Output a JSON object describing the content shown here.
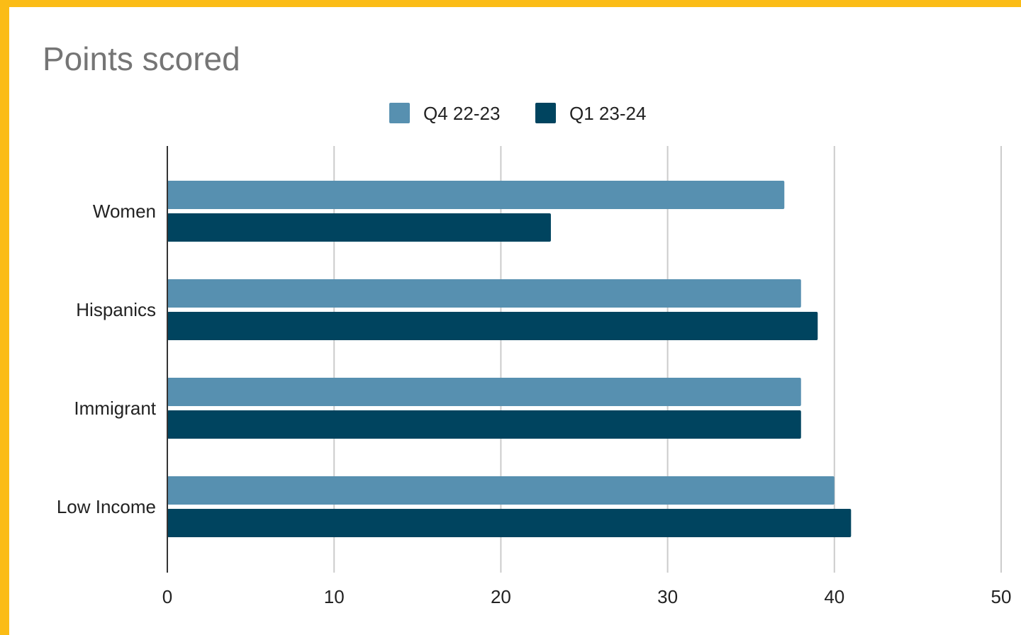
{
  "chart_data": {
    "type": "bar",
    "orientation": "horizontal",
    "title": "Points scored",
    "categories": [
      "Women",
      "Hispanics",
      "Immigrant",
      "Low Income"
    ],
    "series": [
      {
        "name": "Q4 22-23",
        "color": "#5790b0",
        "values": [
          37,
          38,
          38,
          40
        ]
      },
      {
        "name": "Q1 23-24",
        "color": "#00445f",
        "values": [
          23,
          39,
          38,
          41
        ]
      }
    ],
    "xlim": [
      0,
      50
    ],
    "xticks": [
      "0",
      "10",
      "20",
      "30",
      "40",
      "50"
    ],
    "grid": true,
    "legend_position": "top",
    "xlabel": "",
    "ylabel": ""
  },
  "theme": {
    "frame_color": "#fbbc16",
    "grid_color": "#cccccc",
    "axis_color": "#333333",
    "title_color": "#757575"
  }
}
